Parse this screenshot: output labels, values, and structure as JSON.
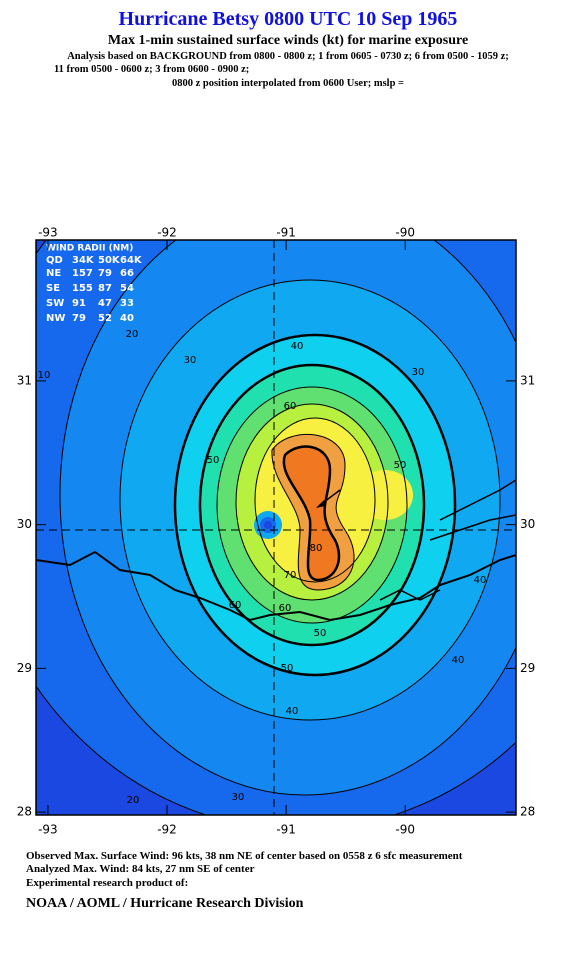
{
  "header": {
    "title": "Hurricane Betsy 0800 UTC 10 Sep 1965",
    "subtitle": "Max 1-min sustained surface winds (kt) for marine exposure",
    "analysis": [
      "Analysis based on  BACKGROUND from 0800 - 0800 z;  1 from 0605 - 0730 z;  6 from 0500 - 1059 z;",
      "11 from 0500 - 0600 z;  3 from 0600 - 0900 z;",
      "0800 z position interpolated from 0600 User; mslp ="
    ]
  },
  "map": {
    "lon_range": [
      -93.1,
      -89.07
    ],
    "lat_range": [
      27.98,
      31.98
    ],
    "lon_ticks": [
      -93,
      -92,
      -91,
      -90
    ],
    "lat_ticks": [
      31,
      30,
      29,
      28
    ],
    "contour_labels": [
      10,
      20,
      30,
      40,
      30,
      60,
      50,
      50,
      80,
      70,
      60,
      60,
      50,
      50,
      40,
      40,
      40,
      30,
      20
    ]
  },
  "wind_radii": {
    "title": "WIND RADII (NM)",
    "columns": [
      "QD",
      "34K",
      "50K",
      "64K"
    ],
    "rows": [
      [
        "NE",
        157,
        79,
        66
      ],
      [
        "SE",
        155,
        87,
        54
      ],
      [
        "SW",
        91,
        47,
        33
      ],
      [
        "NW",
        79,
        52,
        40
      ]
    ]
  },
  "footer": [
    "Observed Max. Surface Wind: 96 kts, 38 nm NE of center based on 0558 z 6 sfc measurement",
    "Analyzed Max. Wind: 84 kts, 27 nm SE of center",
    "Experimental research product of:",
    "NOAA / AOML / Hurricane Research Division"
  ]
}
